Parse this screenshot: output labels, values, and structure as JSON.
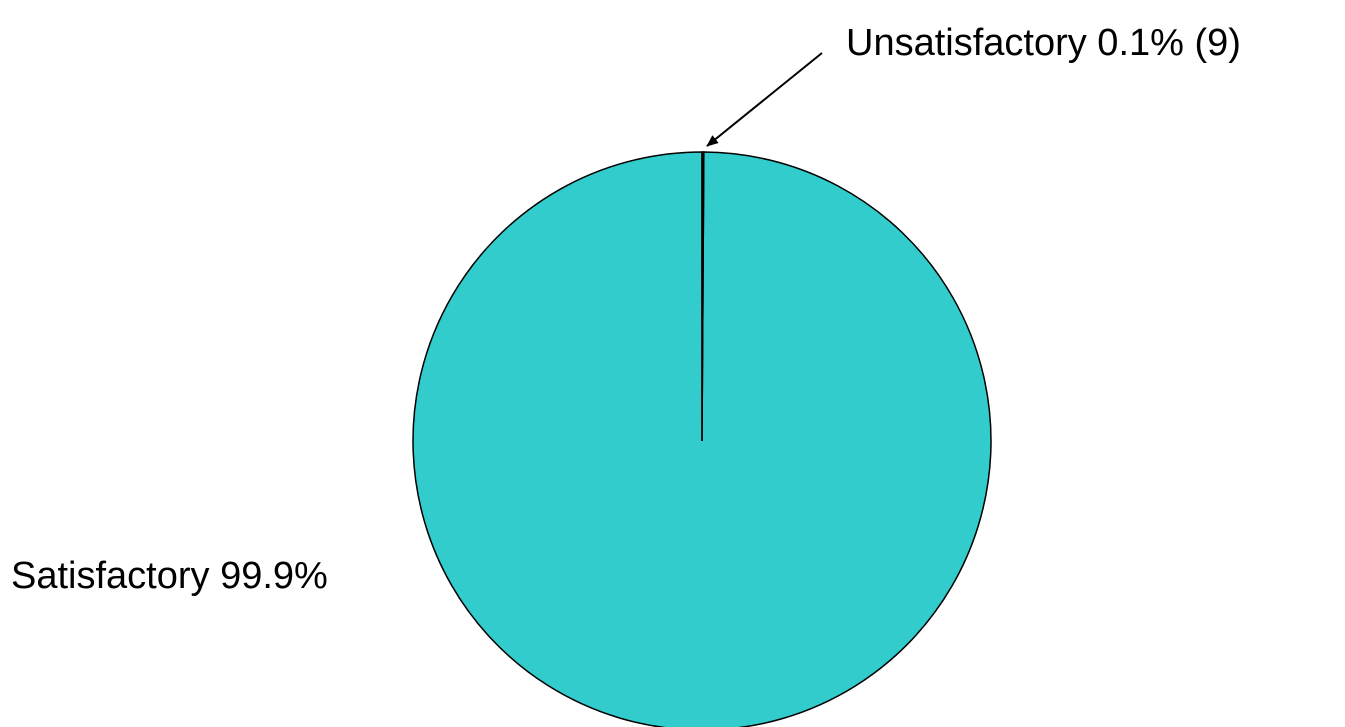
{
  "chart_data": {
    "type": "pie",
    "slices": [
      {
        "name": "Satisfactory",
        "value": 99.9,
        "label": "Satisfactory 99.9%"
      },
      {
        "name": "Unsatisfactory",
        "value": 0.1,
        "label": "Unsatisfactory 0.1% (9)"
      }
    ],
    "unit": "%",
    "colors": {
      "Satisfactory": "#33CCCC",
      "Unsatisfactory": "#000000",
      "outline": "#000000"
    },
    "legend": "none",
    "start": "top",
    "direction": "clockwise",
    "annotation": "arrow-to-unsatisfactory-slice"
  }
}
